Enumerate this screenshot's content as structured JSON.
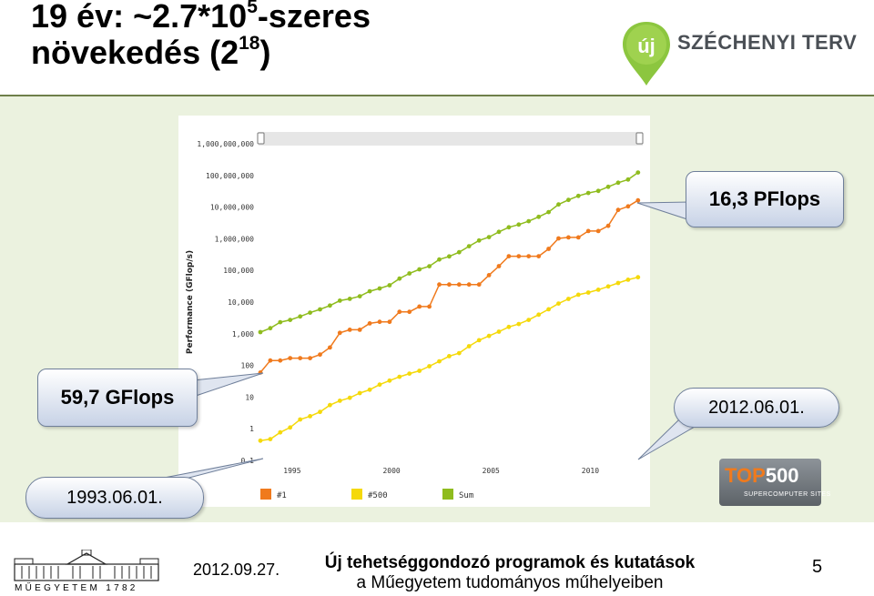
{
  "slide": {
    "title_part1": "19 év: ~2.7*10",
    "title_sup1": "5",
    "title_part2": "-szeres",
    "title_part3": "növekedés (2",
    "title_sup2": "18",
    "title_part4": ")"
  },
  "logo": {
    "badge": "új",
    "text": "SZÉCHENYI TERV",
    "colors": {
      "green": "#8cc63f",
      "dark": "#4a4f55"
    }
  },
  "callouts": {
    "top_value": "16,3 PFlops",
    "bottom_value": "59,7 GFlops",
    "end_date": "2012.06.01.",
    "start_date": "1993.06.01."
  },
  "top500": {
    "text_top": "TOP",
    "text_num": "500",
    "subtitle": "SUPERCOMPUTER SITES"
  },
  "footer": {
    "date": "2012.09.27.",
    "line1": "Új tehetséggondozó programok és kutatások",
    "line2": "a Műegyetem tudományos műhelyeiben",
    "page": "5",
    "bme_text": "MŰEGYETEM 1782"
  },
  "chart_data": {
    "type": "line",
    "scale": "log",
    "ylabel": "Performance (GFlop/s)",
    "y_ticks": [
      "0.1",
      "1",
      "10",
      "100",
      "1,000",
      "10,000",
      "100,000",
      "1,000,000",
      "10,000,000",
      "100,000,000",
      "1,000,000,000"
    ],
    "y_tick_values": [
      0.1,
      1,
      10,
      100,
      1000,
      10000,
      100000,
      1000000,
      10000000,
      100000000,
      1000000000
    ],
    "x_ticks": [
      "1995",
      "2000",
      "2005",
      "2010"
    ],
    "x_tick_values": [
      1995,
      2000,
      2005,
      2010
    ],
    "xlim": [
      1993.4,
      2012.5
    ],
    "ylim": [
      0.1,
      1000000000
    ],
    "series": [
      {
        "name": "#1",
        "color": "#f07a1d",
        "x": [
          1993.4,
          1993.9,
          1994.4,
          1994.9,
          1995.4,
          1995.9,
          1996.4,
          1996.9,
          1997.4,
          1997.9,
          1998.4,
          1998.9,
          1999.4,
          1999.9,
          2000.4,
          2000.9,
          2001.4,
          2001.9,
          2002.4,
          2002.9,
          2003.4,
          2003.9,
          2004.4,
          2004.9,
          2005.4,
          2005.9,
          2006.4,
          2006.9,
          2007.4,
          2007.9,
          2008.4,
          2008.9,
          2009.4,
          2009.9,
          2010.4,
          2010.9,
          2011.4,
          2011.9,
          2012.4
        ],
        "values": [
          59.7,
          143,
          143,
          170,
          170,
          170,
          220,
          368,
          1068,
          1338,
          1338,
          2121,
          2379,
          2379,
          4938,
          4938,
          7226,
          7226,
          35860,
          35860,
          35860,
          35860,
          35860,
          70720,
          136800,
          280600,
          280600,
          280600,
          280600,
          478200,
          1026000,
          1105000,
          1105000,
          1759000,
          1759000,
          2566000,
          8162000,
          10510000,
          16320000
        ]
      },
      {
        "name": "#500",
        "color": "#f5d90a",
        "x": [
          1993.4,
          1993.9,
          1994.4,
          1994.9,
          1995.4,
          1995.9,
          1996.4,
          1996.9,
          1997.4,
          1997.9,
          1998.4,
          1998.9,
          1999.4,
          1999.9,
          2000.4,
          2000.9,
          2001.4,
          2001.9,
          2002.4,
          2002.9,
          2003.4,
          2003.9,
          2004.4,
          2004.9,
          2005.4,
          2005.9,
          2006.4,
          2006.9,
          2007.4,
          2007.9,
          2008.4,
          2008.9,
          2009.4,
          2009.9,
          2010.4,
          2010.9,
          2011.4,
          2011.9,
          2012.4
        ],
        "values": [
          0.42,
          0.47,
          0.77,
          1.1,
          1.96,
          2.5,
          3.4,
          5.6,
          7.7,
          9.5,
          13.4,
          17.1,
          24.7,
          33.1,
          43.8,
          55.1,
          67.8,
          94.3,
          134.3,
          196.0,
          245.1,
          403.4,
          624.0,
          850.6,
          1166,
          1646,
          2026,
          2737,
          4005,
          5929,
          9000,
          12640,
          17100,
          20050,
          24670,
          31110,
          40190,
          50940,
          60820
        ]
      },
      {
        "name": "Sum",
        "color": "#8fbc1e",
        "x": [
          1993.4,
          1993.9,
          1994.4,
          1994.9,
          1995.4,
          1995.9,
          1996.4,
          1996.9,
          1997.4,
          1997.9,
          1998.4,
          1998.9,
          1999.4,
          1999.9,
          2000.4,
          2000.9,
          2001.4,
          2001.9,
          2002.4,
          2002.9,
          2003.4,
          2003.9,
          2004.4,
          2004.9,
          2005.4,
          2005.9,
          2006.4,
          2006.9,
          2007.4,
          2007.9,
          2008.4,
          2008.9,
          2009.4,
          2009.9,
          2010.4,
          2010.9,
          2011.4,
          2011.9,
          2012.4
        ],
        "values": [
          1128,
          1493,
          2317,
          2732,
          3510,
          4630,
          5877,
          7765,
          11130,
          12700,
          15290,
          21910,
          26900,
          33950,
          54960,
          80270,
          108300,
          135500,
          221600,
          277800,
          374400,
          581500,
          880700,
          1125000,
          1656000,
          2297000,
          2810000,
          3578000,
          4930000,
          6966000,
          12150000,
          16900000,
          22570000,
          27950000,
          32400000,
          43660000,
          58880000,
          74280000,
          123400000
        ]
      }
    ]
  }
}
